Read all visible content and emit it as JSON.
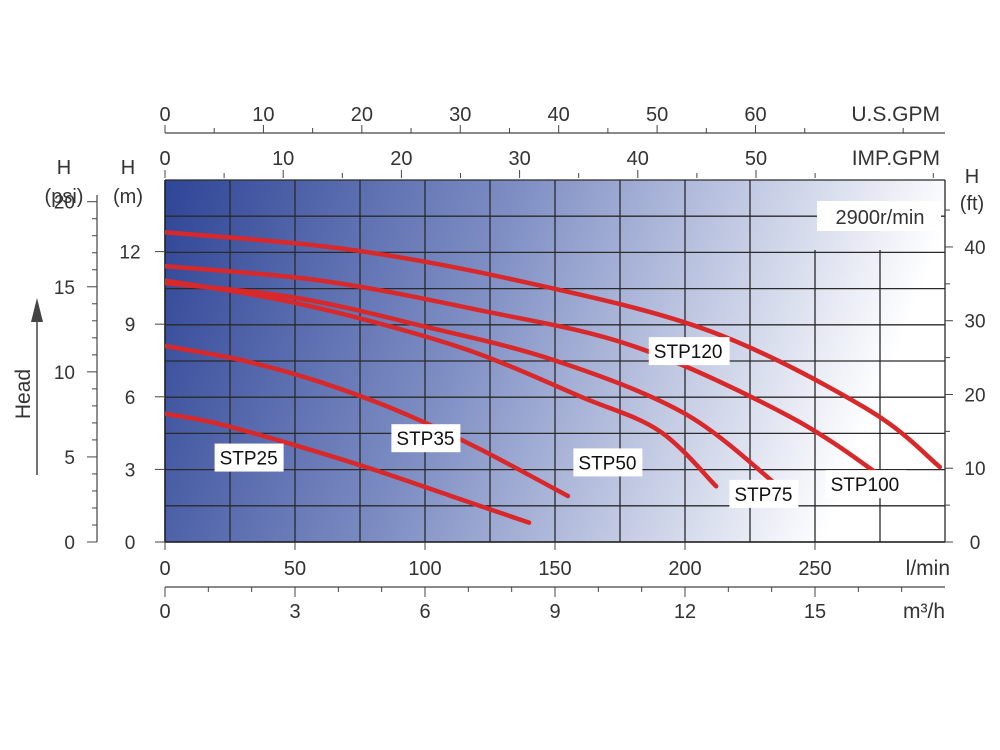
{
  "colors": {
    "curve": "#d8282a",
    "grid": "#2a2a2a",
    "gradient_start": "#2f4596",
    "gradient_end": "#ffffff",
    "axis_text": "#333333"
  },
  "chart_data": {
    "type": "line",
    "speed_label": "2900r/min",
    "x_axes": {
      "us_gpm": {
        "label": "U.S.GPM",
        "ticks": [
          0,
          10,
          20,
          30,
          40,
          50,
          60
        ]
      },
      "imp_gpm": {
        "label": "IMP.GPM",
        "ticks": [
          0,
          10,
          20,
          30,
          40,
          50
        ]
      },
      "l_min": {
        "label": "l/min",
        "ticks": [
          0,
          50,
          100,
          150,
          200,
          250
        ],
        "range": [
          0,
          300
        ]
      },
      "m3h": {
        "label": "m³/h",
        "ticks": [
          0,
          3,
          6,
          9,
          12,
          15
        ]
      }
    },
    "y_axes": {
      "psi": {
        "label_line1": "H",
        "label_line2": "(psi)",
        "ticks": [
          0,
          5,
          10,
          15,
          20
        ]
      },
      "m": {
        "label_line1": "H",
        "label_line2": "(m)",
        "ticks": [
          0,
          3,
          6,
          9,
          12
        ],
        "range": [
          0,
          15
        ]
      },
      "ft": {
        "label_line1": "H",
        "label_line2": "(ft)",
        "ticks": [
          0,
          10,
          20,
          30,
          40
        ]
      }
    },
    "head_label": "Head",
    "series": [
      {
        "name": "STP25",
        "x": [
          0,
          20,
          50,
          80,
          110,
          140
        ],
        "y": [
          5.3,
          4.9,
          4.0,
          3.0,
          1.9,
          0.8
        ]
      },
      {
        "name": "STP35",
        "x": [
          0,
          30,
          60,
          90,
          120,
          155
        ],
        "y": [
          8.1,
          7.5,
          6.6,
          5.4,
          3.9,
          1.9
        ]
      },
      {
        "name": "STP50",
        "x": [
          0,
          40,
          80,
          120,
          160,
          190,
          212
        ],
        "y": [
          10.8,
          10.1,
          9.1,
          7.8,
          6.0,
          4.6,
          2.3
        ]
      },
      {
        "name": "STP75",
        "x": [
          0,
          50,
          100,
          150,
          200,
          237
        ],
        "y": [
          10.7,
          10.1,
          8.9,
          7.5,
          5.3,
          2.2
        ]
      },
      {
        "name": "STP100",
        "x": [
          0,
          60,
          120,
          180,
          240,
          277
        ],
        "y": [
          11.4,
          10.8,
          9.6,
          8.1,
          5.2,
          2.6
        ]
      },
      {
        "name": "STP120",
        "x": [
          0,
          70,
          140,
          210,
          270,
          298
        ],
        "y": [
          12.8,
          12.1,
          10.7,
          8.7,
          5.5,
          3.1
        ]
      }
    ]
  }
}
